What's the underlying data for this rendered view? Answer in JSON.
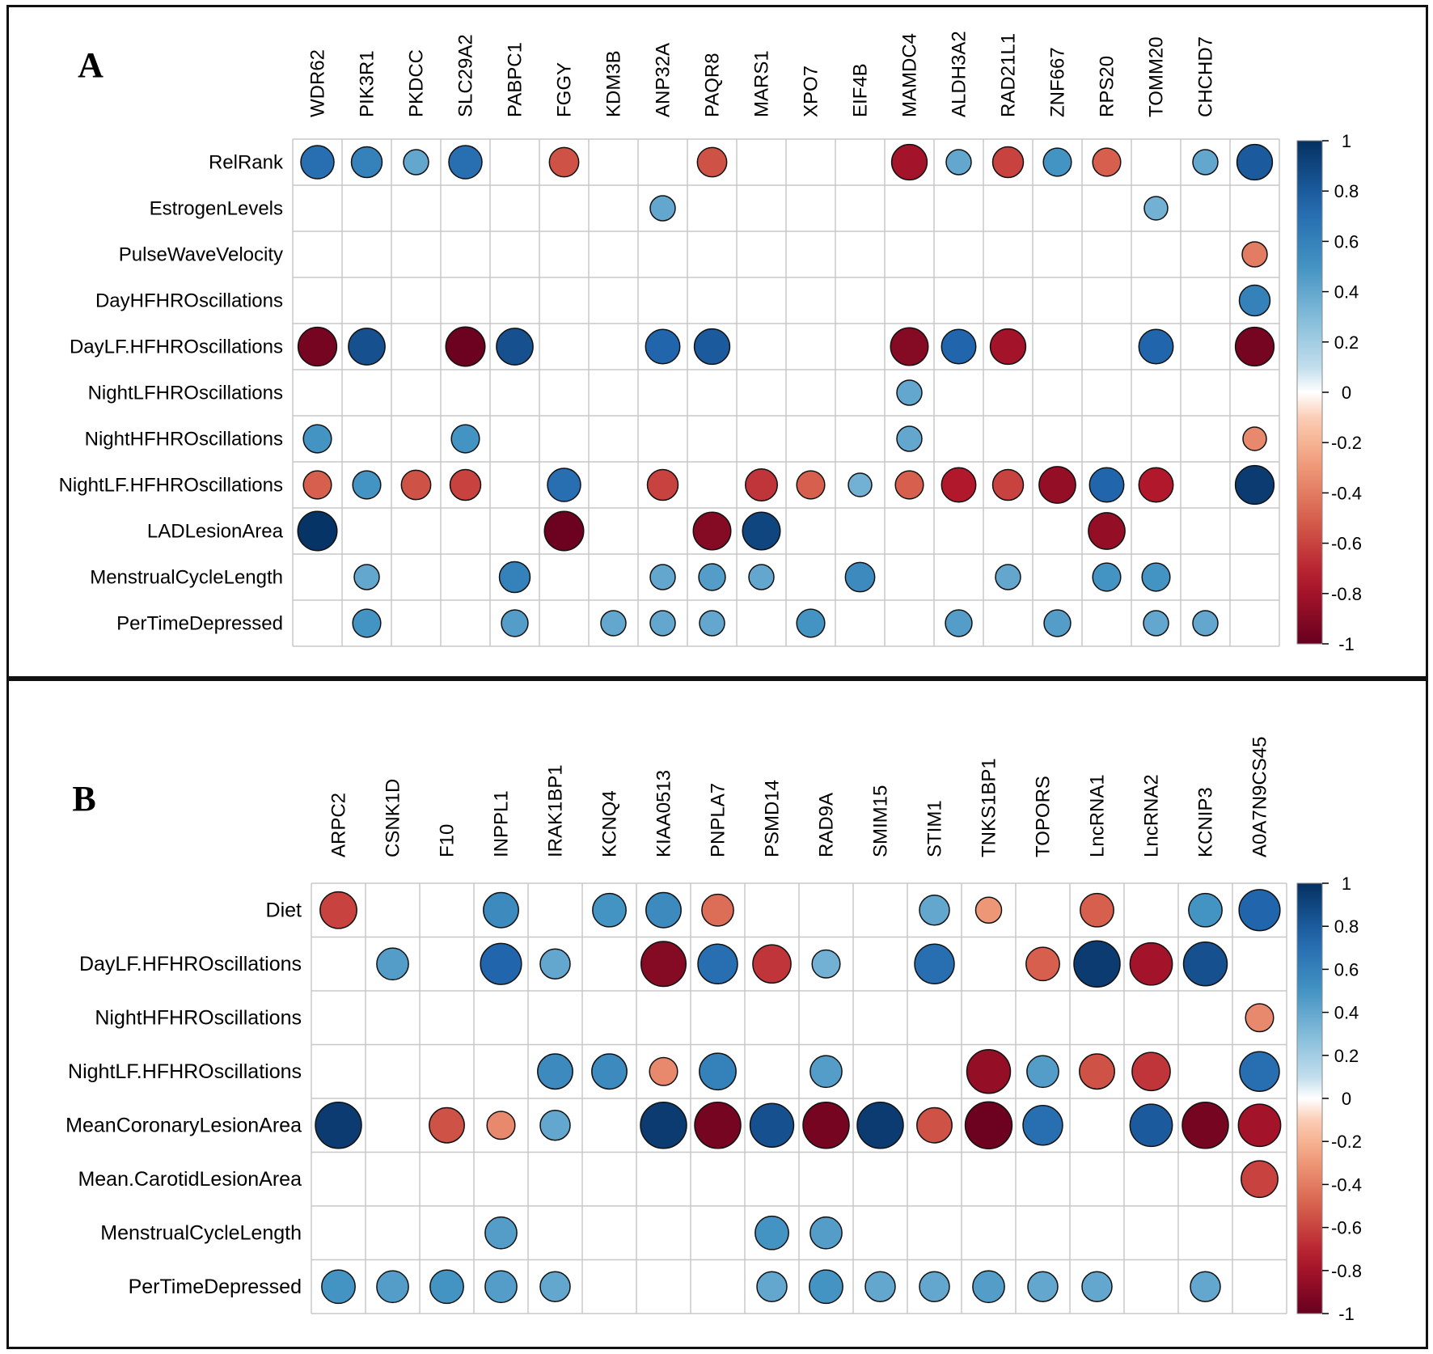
{
  "chart_data": [
    {
      "type": "heatmap",
      "subtype": "correlation-circle-matrix",
      "panel_label": "A",
      "columns": [
        "WDR62",
        "PIK3R1",
        "PKDCC",
        "SLC29A2",
        "PABPC1",
        "FGGY",
        "KDM3B",
        "ANP32A",
        "PAQR8",
        "MARS1",
        "XPO7",
        "EIF4B",
        "MAMDC4",
        "ALDH3A2",
        "RAD21L1",
        "ZNF667",
        "RPS20",
        "TOMM20",
        "CHCHD7",
        ""
      ],
      "rows": [
        "RelRank",
        "EstrogenLevels",
        "PulseWaveVelocity",
        "DayHFHROscillations",
        "DayLF.HFHROscillations",
        "NightLFHROscillations",
        "NightHFHROscillations",
        "NightLF.HFHROscillations",
        "LADLesionArea",
        "MenstrualCycleLength",
        "PerTimeDepressed"
      ],
      "values": [
        [
          0.7,
          0.6,
          0.4,
          0.7,
          null,
          -0.55,
          null,
          null,
          -0.55,
          null,
          null,
          null,
          -0.8,
          0.4,
          -0.6,
          0.5,
          -0.5,
          null,
          0.4,
          0.8
        ],
        [
          null,
          null,
          null,
          null,
          null,
          null,
          null,
          0.4,
          null,
          null,
          null,
          null,
          null,
          null,
          null,
          null,
          null,
          0.35,
          null,
          null
        ],
        [
          null,
          null,
          null,
          null,
          null,
          null,
          null,
          null,
          null,
          null,
          null,
          null,
          null,
          null,
          null,
          null,
          null,
          null,
          null,
          -0.4
        ],
        [
          null,
          null,
          null,
          null,
          null,
          null,
          null,
          null,
          null,
          null,
          null,
          null,
          null,
          null,
          null,
          null,
          null,
          null,
          null,
          0.6
        ],
        [
          -0.95,
          0.85,
          null,
          -0.98,
          0.85,
          null,
          null,
          0.75,
          0.8,
          null,
          null,
          null,
          -0.9,
          0.75,
          -0.8,
          null,
          null,
          0.75,
          null,
          -0.95
        ],
        [
          null,
          null,
          null,
          null,
          null,
          null,
          null,
          null,
          null,
          null,
          null,
          null,
          0.4,
          null,
          null,
          null,
          null,
          null,
          null,
          null
        ],
        [
          0.5,
          null,
          null,
          0.5,
          null,
          null,
          null,
          null,
          null,
          null,
          null,
          null,
          0.4,
          null,
          null,
          null,
          null,
          null,
          null,
          -0.35
        ],
        [
          -0.5,
          0.5,
          -0.55,
          -0.6,
          null,
          0.7,
          null,
          -0.6,
          null,
          -0.65,
          -0.5,
          0.35,
          -0.5,
          -0.75,
          -0.6,
          -0.85,
          0.75,
          -0.75,
          null,
          0.95
        ],
        [
          0.98,
          null,
          null,
          null,
          null,
          -0.98,
          null,
          null,
          -0.9,
          0.9,
          null,
          null,
          null,
          null,
          null,
          null,
          -0.85,
          null,
          null,
          null
        ],
        [
          null,
          0.4,
          null,
          null,
          0.6,
          null,
          null,
          0.4,
          0.45,
          0.4,
          null,
          0.55,
          null,
          null,
          0.4,
          null,
          0.5,
          0.5,
          null,
          null
        ],
        [
          null,
          0.5,
          null,
          null,
          0.45,
          null,
          0.4,
          0.4,
          0.4,
          null,
          0.5,
          null,
          null,
          0.45,
          null,
          0.45,
          null,
          0.4,
          0.4,
          null
        ]
      ],
      "legend_ticks": [
        "1",
        "0.8",
        "0.6",
        "0.4",
        "0.2",
        "0",
        "-0.2",
        "-0.4",
        "-0.6",
        "-0.8",
        "-1"
      ],
      "colorscale": {
        "min": -1,
        "max": 1,
        "low": "#67001F",
        "mid": "#FFFFFF",
        "high": "#053061"
      }
    },
    {
      "type": "heatmap",
      "subtype": "correlation-circle-matrix",
      "panel_label": "B",
      "columns": [
        "ARPC2",
        "CSNK1D",
        "F10",
        "INPPL1",
        "IRAK1BP1",
        "KCNQ4",
        "KIAA0513",
        "PNPLA7",
        "PSMD14",
        "RAD9A",
        "SMIM15",
        "STIM1",
        "TNKS1BP1",
        "TOPORS",
        "LncRNA1",
        "LncRNA2",
        "KCNIP3",
        "A0A7N9CS45"
      ],
      "rows": [
        "Diet",
        "DayLF.HFHROscillations",
        "NightHFHROscillations",
        "NightLF.HFHROscillations",
        "MeanCoronaryLesionArea",
        "Mean.CarotidLesionArea",
        "MenstrualCycleLength",
        "PerTimeDepressed"
      ],
      "values": [
        [
          -0.6,
          null,
          null,
          0.55,
          null,
          0.5,
          0.55,
          -0.45,
          null,
          null,
          null,
          0.4,
          -0.3,
          null,
          -0.5,
          null,
          0.5,
          0.75
        ],
        [
          null,
          0.45,
          null,
          0.75,
          0.4,
          null,
          -0.9,
          0.7,
          -0.65,
          0.35,
          null,
          0.7,
          null,
          -0.5,
          0.95,
          -0.8,
          0.85,
          null
        ],
        [
          null,
          null,
          null,
          null,
          null,
          null,
          null,
          null,
          null,
          null,
          null,
          null,
          null,
          null,
          null,
          null,
          null,
          -0.35
        ],
        [
          null,
          null,
          null,
          null,
          0.55,
          0.55,
          -0.35,
          0.6,
          null,
          0.45,
          null,
          null,
          -0.85,
          0.45,
          -0.55,
          -0.65,
          null,
          0.7
        ],
        [
          0.95,
          null,
          -0.55,
          -0.35,
          0.4,
          null,
          0.95,
          -0.95,
          0.85,
          -0.95,
          0.95,
          -0.55,
          -0.98,
          0.7,
          null,
          0.8,
          -0.95,
          -0.8
        ],
        [
          null,
          null,
          null,
          null,
          null,
          null,
          null,
          null,
          null,
          null,
          null,
          null,
          null,
          null,
          null,
          null,
          null,
          -0.6
        ],
        [
          null,
          null,
          null,
          0.45,
          null,
          null,
          null,
          null,
          0.5,
          0.45,
          null,
          null,
          null,
          null,
          null,
          null,
          null,
          null
        ],
        [
          0.5,
          0.45,
          0.5,
          0.45,
          0.4,
          null,
          null,
          null,
          0.4,
          0.5,
          0.4,
          0.4,
          0.45,
          0.4,
          0.4,
          null,
          0.4,
          null
        ]
      ],
      "legend_ticks": [
        "1",
        "0.8",
        "0.6",
        "0.4",
        "0.2",
        "0",
        "-0.2",
        "-0.4",
        "-0.6",
        "-0.8",
        "-1"
      ],
      "colorscale": {
        "min": -1,
        "max": 1,
        "low": "#67001F",
        "mid": "#FFFFFF",
        "high": "#053061"
      }
    }
  ]
}
